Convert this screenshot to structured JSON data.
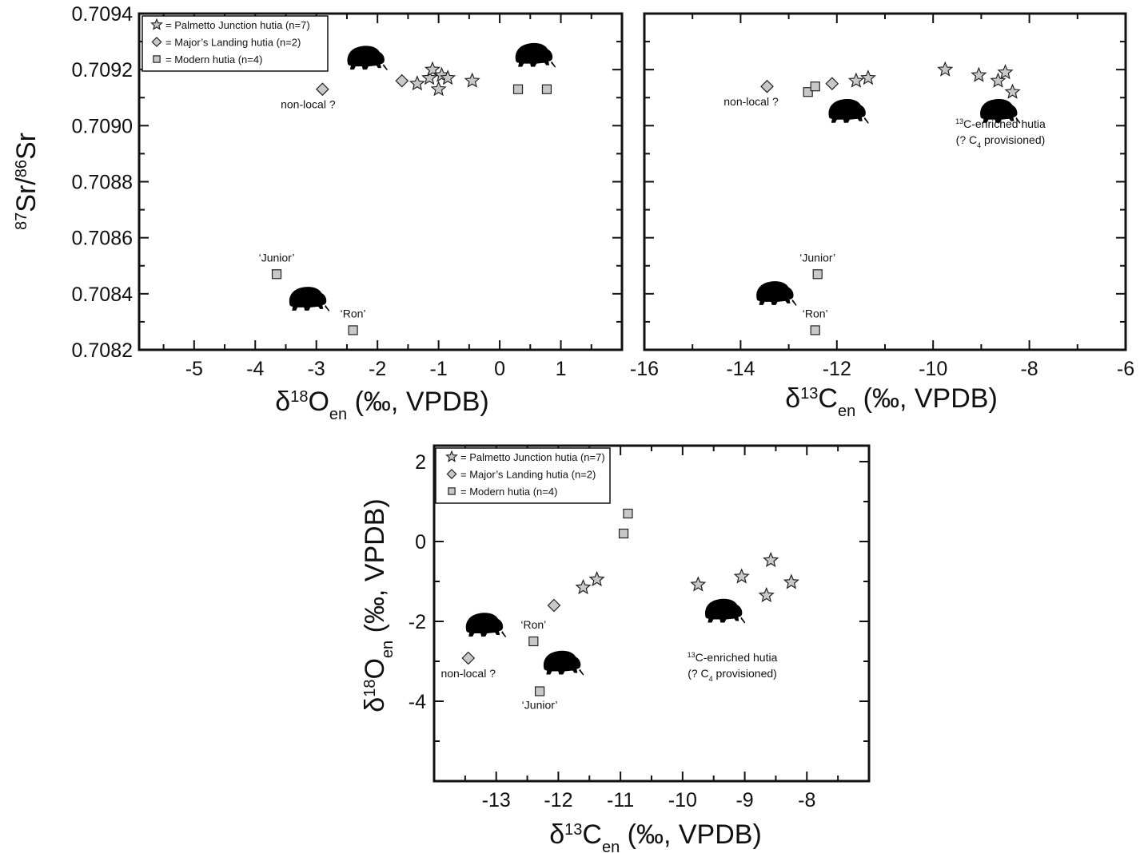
{
  "chart_data": [
    {
      "id": "p1",
      "type": "scatter",
      "xlabel": {
        "base": "δ",
        "sup": "18",
        "main": "O",
        "sub": "en",
        "rest": " (‰, VPDB)"
      },
      "ylabel": {
        "sup1": "87",
        "m1": "Sr/",
        "sup2": "86",
        "m2": "Sr"
      },
      "xlim": [
        -5.9,
        2.0
      ],
      "ylim": [
        0.7082,
        0.7094
      ],
      "xticks": [
        -5,
        -4,
        -3,
        -2,
        -1,
        0,
        1
      ],
      "xtick_labels": [
        "-5",
        "-4",
        "-3",
        "-2",
        "-1",
        "0",
        "1"
      ],
      "yticks": [
        0.7082,
        0.7084,
        0.7086,
        0.7088,
        0.709,
        0.7092,
        0.7094
      ],
      "ytick_labels": [
        "0.7082",
        "0.7084",
        "0.7086",
        "0.7088",
        "0.7090",
        "0.7092",
        "0.7094"
      ],
      "legend": {
        "position": "top-left",
        "entries": [
          {
            "marker": "star",
            "label": "= Palmetto Junction hutia (n=7)"
          },
          {
            "marker": "diamond",
            "label": "= Major’s Landing hutia (n=2)"
          },
          {
            "marker": "square",
            "label": "= Modern hutia (n=4)"
          }
        ]
      },
      "series": [
        {
          "marker": "star",
          "points": [
            [
              -1.35,
              0.70915
            ],
            [
              -1.15,
              0.70917
            ],
            [
              -1.1,
              0.7092
            ],
            [
              -0.95,
              0.70918
            ],
            [
              -0.85,
              0.70917
            ],
            [
              -1.0,
              0.70913
            ],
            [
              -0.45,
              0.70916
            ]
          ]
        },
        {
          "marker": "diamond",
          "points": [
            [
              -2.9,
              0.70913
            ],
            [
              -1.6,
              0.70916
            ]
          ]
        },
        {
          "marker": "square",
          "points": [
            [
              0.3,
              0.70913
            ],
            [
              0.77,
              0.70913
            ],
            [
              -3.65,
              0.70847
            ],
            [
              -2.4,
              0.70827
            ]
          ]
        }
      ],
      "annotations": [
        {
          "text": "non-local ?",
          "x": -2.9,
          "y": 0.70913,
          "dx": -18,
          "dy": 24
        },
        {
          "text": "‘Junior’",
          "x": -3.65,
          "y": 0.70847,
          "dx": 0,
          "dy": -16
        },
        {
          "text": "‘Ron’",
          "x": -2.4,
          "y": 0.70827,
          "dx": 0,
          "dy": -16
        }
      ],
      "silhouettes": [
        {
          "x": -2.2,
          "y": 0.70924
        },
        {
          "x": 0.55,
          "y": 0.70925
        },
        {
          "x": -3.15,
          "y": 0.70838
        }
      ]
    },
    {
      "id": "p2",
      "type": "scatter",
      "xlabel": {
        "base": "δ",
        "sup": "13",
        "main": "C",
        "sub": "en",
        "rest": " (‰, VPDB)"
      },
      "xlim": [
        -16,
        -6
      ],
      "ylim": [
        0.7082,
        0.7094
      ],
      "xticks": [
        -16,
        -14,
        -12,
        -10,
        -8,
        -6
      ],
      "xtick_labels": [
        "-16",
        "-14",
        "-12",
        "-10",
        "-8",
        "-6"
      ],
      "yticks": [
        0.7082,
        0.7084,
        0.7086,
        0.7088,
        0.709,
        0.7092,
        0.7094
      ],
      "series": [
        {
          "marker": "star",
          "points": [
            [
              -11.6,
              0.70916
            ],
            [
              -11.35,
              0.70917
            ],
            [
              -9.75,
              0.7092
            ],
            [
              -9.05,
              0.70918
            ],
            [
              -8.65,
              0.70916
            ],
            [
              -8.5,
              0.70919
            ],
            [
              -8.35,
              0.70912
            ]
          ]
        },
        {
          "marker": "diamond",
          "points": [
            [
              -13.45,
              0.70914
            ],
            [
              -12.1,
              0.70915
            ]
          ]
        },
        {
          "marker": "square",
          "points": [
            [
              -12.6,
              0.70912
            ],
            [
              -12.45,
              0.70914
            ],
            [
              -12.4,
              0.70847
            ],
            [
              -12.45,
              0.70827
            ]
          ]
        }
      ],
      "annotations": [
        {
          "text": "non-local ?",
          "x": -13.45,
          "y": 0.70914,
          "dx": -20,
          "dy": 24
        },
        {
          "text": "‘Junior’",
          "x": -12.4,
          "y": 0.70847,
          "dx": 0,
          "dy": -16
        },
        {
          "text": "‘Ron’",
          "x": -12.45,
          "y": 0.70827,
          "dx": 0,
          "dy": -16
        }
      ],
      "enriched_label": {
        "x": -8.6,
        "y": 0.70905,
        "line1_sup": "13",
        "line1": "C-enriched hutia",
        "line2a": "(? C",
        "line2_sub": "4",
        "line2b": " provisioned)"
      },
      "silhouettes": [
        {
          "x": -11.8,
          "y": 0.70905
        },
        {
          "x": -8.65,
          "y": 0.70905
        },
        {
          "x": -13.3,
          "y": 0.7084
        }
      ]
    },
    {
      "id": "p3",
      "type": "scatter",
      "xlabel": {
        "base": "δ",
        "sup": "13",
        "main": "C",
        "sub": "en",
        "rest": " (‰, VPDB)"
      },
      "ylabel": {
        "base": "δ",
        "sup": "18",
        "main": "O",
        "sub": "en",
        "rest": "  (‰, VPDB)"
      },
      "xlim": [
        -14.0,
        -7.0
      ],
      "ylim": [
        -6,
        2.4
      ],
      "xticks": [
        -13,
        -12,
        -11,
        -10,
        -9,
        -8
      ],
      "xtick_labels": [
        "-13",
        "-12",
        "-11",
        "-10",
        "-9",
        "-8"
      ],
      "yticks": [
        -4,
        -2,
        0,
        2
      ],
      "ytick_labels": [
        "-4",
        "-2",
        "0",
        "2"
      ],
      "legend": {
        "position": "top-left",
        "entries": [
          {
            "marker": "star",
            "label": "= Palmetto Junction hutia (n=7)"
          },
          {
            "marker": "diamond",
            "label": "= Major’s Landing hutia (n=2)"
          },
          {
            "marker": "square",
            "label": "= Modern hutia (n=4)"
          }
        ]
      },
      "series": [
        {
          "marker": "star",
          "points": [
            [
              -11.6,
              -1.15
            ],
            [
              -11.38,
              -0.95
            ],
            [
              -9.75,
              -1.08
            ],
            [
              -9.05,
              -0.88
            ],
            [
              -8.58,
              -0.47
            ],
            [
              -8.65,
              -1.35
            ],
            [
              -8.25,
              -1.02
            ]
          ]
        },
        {
          "marker": "diamond",
          "points": [
            [
              -13.45,
              -2.92
            ],
            [
              -12.07,
              -1.6
            ]
          ]
        },
        {
          "marker": "square",
          "points": [
            [
              -10.88,
              0.7
            ],
            [
              -10.95,
              0.2
            ],
            [
              -12.4,
              -2.5
            ],
            [
              -12.3,
              -3.75
            ]
          ]
        }
      ],
      "annotations": [
        {
          "text": "non-local ?",
          "x": -13.45,
          "y": -2.92,
          "dx": 0,
          "dy": 24
        },
        {
          "text": "‘Ron’",
          "x": -12.4,
          "y": -2.5,
          "dx": 0,
          "dy": -16
        },
        {
          "text": "‘Junior’",
          "x": -12.3,
          "y": -3.75,
          "dx": 0,
          "dy": 22
        }
      ],
      "enriched_label": {
        "x": -9.2,
        "y": -2.6,
        "line1_sup": "13",
        "line1": "C-enriched hutia",
        "line2a": "(? C",
        "line2_sub": "4",
        "line2b": " provisioned)"
      },
      "silhouettes": [
        {
          "x": -13.2,
          "y": -2.1
        },
        {
          "x": -11.95,
          "y": -3.05
        },
        {
          "x": -9.35,
          "y": -1.75
        }
      ]
    }
  ]
}
